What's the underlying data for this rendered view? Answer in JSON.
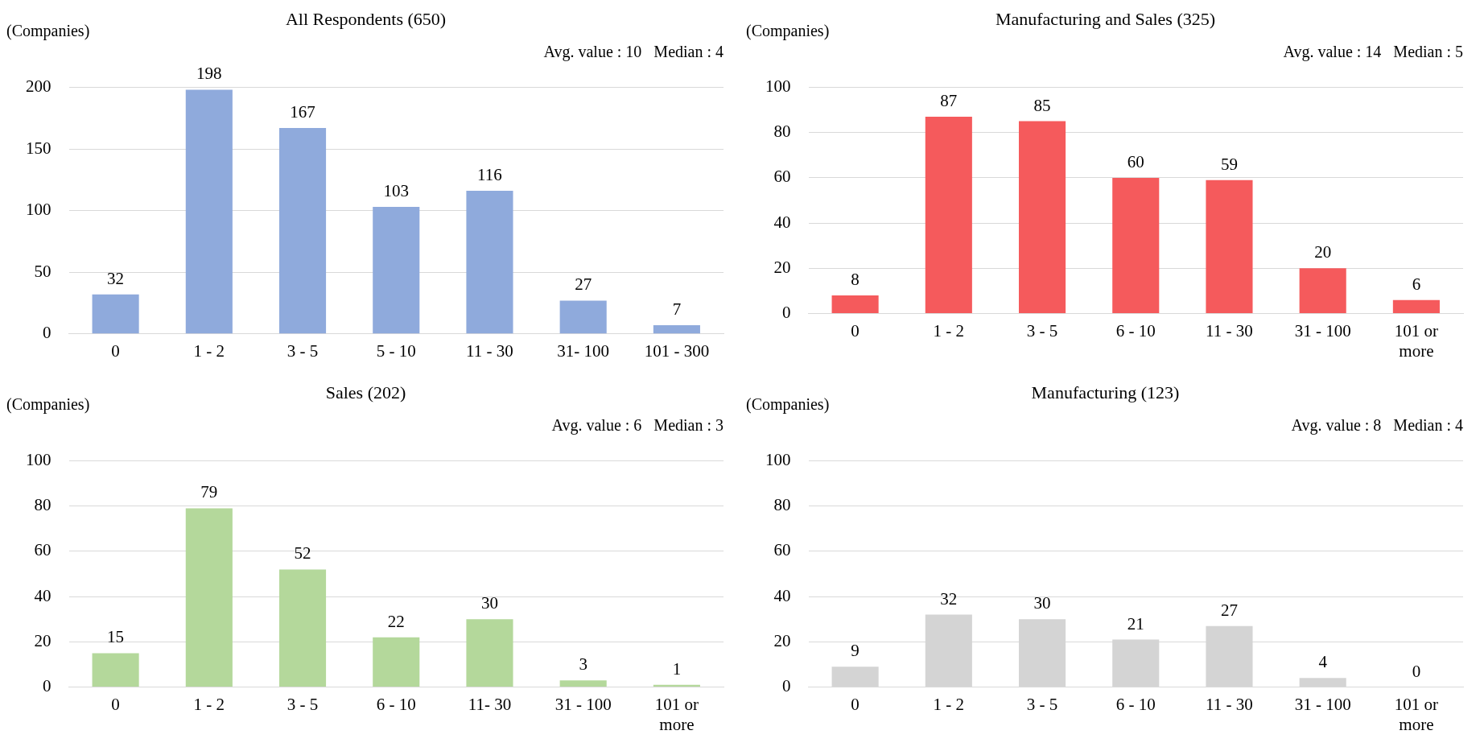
{
  "chart_data": [
    {
      "type": "bar",
      "title": "All Respondents (650)",
      "ylabel": "(Companies)",
      "annotations": [
        "Avg. value : 10   Median : 4"
      ],
      "categories": [
        "0",
        "1 - 2",
        "3 - 5",
        "5 - 10",
        "11 - 30",
        "31- 100",
        "101 - 300"
      ],
      "values": [
        32,
        198,
        167,
        103,
        116,
        27,
        7
      ],
      "color": "#8faadc",
      "ylim": [
        0,
        200
      ],
      "yticks": [
        0,
        50,
        100,
        150,
        200
      ],
      "grid": "y",
      "data_labels": true,
      "legend": false
    },
    {
      "type": "bar",
      "title": "Manufacturing and Sales (325)",
      "ylabel": "(Companies)",
      "annotations": [
        "Avg. value : 14   Median : 5"
      ],
      "categories": [
        "0",
        "1 - 2",
        "3 - 5",
        "6 - 10",
        "11 - 30",
        "31 - 100",
        "101 or more"
      ],
      "values": [
        8,
        87,
        85,
        60,
        59,
        20,
        6
      ],
      "color": "#f55a5c",
      "ylim": [
        0,
        100
      ],
      "yticks": [
        0,
        20,
        40,
        60,
        80,
        100
      ],
      "grid": "y",
      "data_labels": true,
      "legend": false
    },
    {
      "type": "bar",
      "title": "Sales (202)",
      "ylabel": "(Companies)",
      "annotations": [
        "Avg. value : 6   Median : 3"
      ],
      "categories": [
        "0",
        "1 - 2",
        "3 - 5",
        "6 - 10",
        "11- 30",
        "31 - 100",
        "101 or more"
      ],
      "values": [
        15,
        79,
        52,
        22,
        30,
        3,
        1
      ],
      "color": "#b4d89b",
      "ylim": [
        0,
        100
      ],
      "yticks": [
        0,
        20,
        40,
        60,
        80,
        100
      ],
      "grid": "y",
      "data_labels": true,
      "legend": false
    },
    {
      "type": "bar",
      "title": "Manufacturing (123)",
      "ylabel": "(Companies)",
      "annotations": [
        "Avg. value : 8   Median : 4"
      ],
      "categories": [
        "0",
        "1 - 2",
        "3 - 5",
        "6 - 10",
        "11 - 30",
        "31 - 100",
        "101 or more"
      ],
      "values": [
        9,
        32,
        30,
        21,
        27,
        4,
        0
      ],
      "color": "#d4d4d4",
      "ylim": [
        0,
        100
      ],
      "yticks": [
        0,
        20,
        40,
        60,
        80,
        100
      ],
      "grid": "y",
      "data_labels": true,
      "legend": false
    }
  ]
}
